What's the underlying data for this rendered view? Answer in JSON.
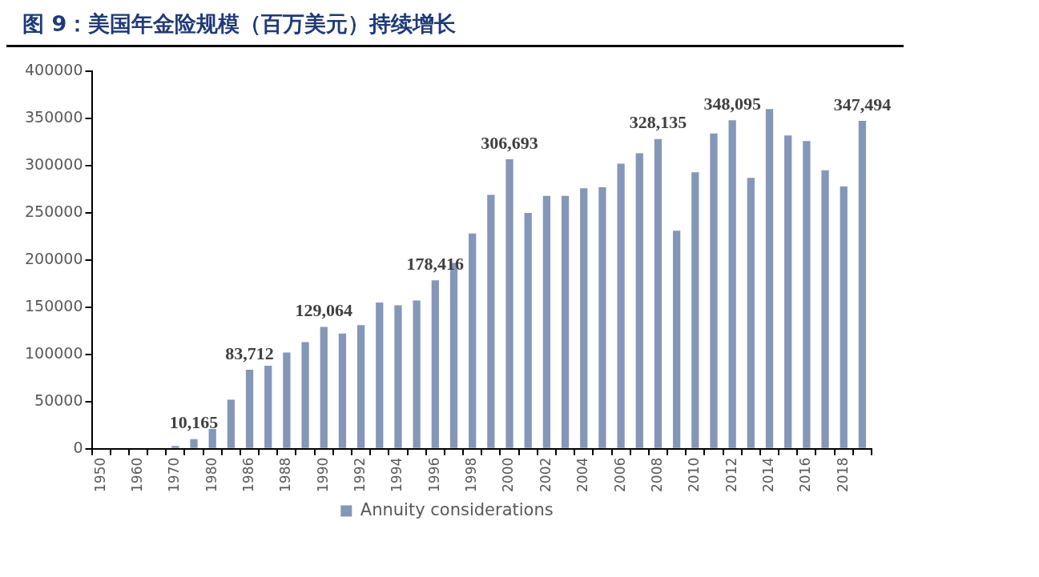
{
  "chart_data": {
    "type": "bar",
    "title": "图 9：美国年金险规模（百万美元）持续增长",
    "categories": [
      "1950",
      null,
      "1960",
      null,
      "1970",
      null,
      "1980",
      null,
      "1986",
      null,
      "1988",
      null,
      "1990",
      null,
      "1992",
      null,
      "1994",
      null,
      "1996",
      null,
      "1998",
      null,
      "2000",
      null,
      "2002",
      null,
      "2004",
      null,
      "2006",
      null,
      "2008",
      null,
      "2010",
      null,
      "2012",
      null,
      "2014",
      null,
      "2016",
      null,
      "2018",
      null
    ],
    "series": [
      {
        "name": "Annuity considerations",
        "color": "#8497b8",
        "values": [
          0,
          0,
          0,
          0,
          3000,
          10165,
          21000,
          52000,
          83712,
          88000,
          102000,
          113000,
          129064,
          122000,
          131000,
          155000,
          152000,
          157000,
          178416,
          197000,
          228000,
          269000,
          306693,
          250000,
          268000,
          268000,
          276000,
          277000,
          302000,
          313000,
          328135,
          231000,
          293000,
          334000,
          348095,
          287000,
          360000,
          332000,
          326000,
          295000,
          278000,
          347494
        ],
        "value_labels": [
          null,
          null,
          null,
          null,
          null,
          "10,165",
          null,
          null,
          "83,712",
          null,
          null,
          null,
          "129,064",
          null,
          null,
          null,
          null,
          null,
          "178,416",
          null,
          null,
          null,
          "306,693",
          null,
          null,
          null,
          null,
          null,
          null,
          null,
          "328,135",
          null,
          null,
          null,
          "348,095",
          null,
          null,
          null,
          null,
          null,
          null,
          "347,494"
        ]
      }
    ],
    "ylim": [
      0,
      400000
    ],
    "yticks": [
      0,
      50000,
      100000,
      150000,
      200000,
      250000,
      300000,
      350000,
      400000
    ],
    "grid": false,
    "legend": "bottom"
  }
}
